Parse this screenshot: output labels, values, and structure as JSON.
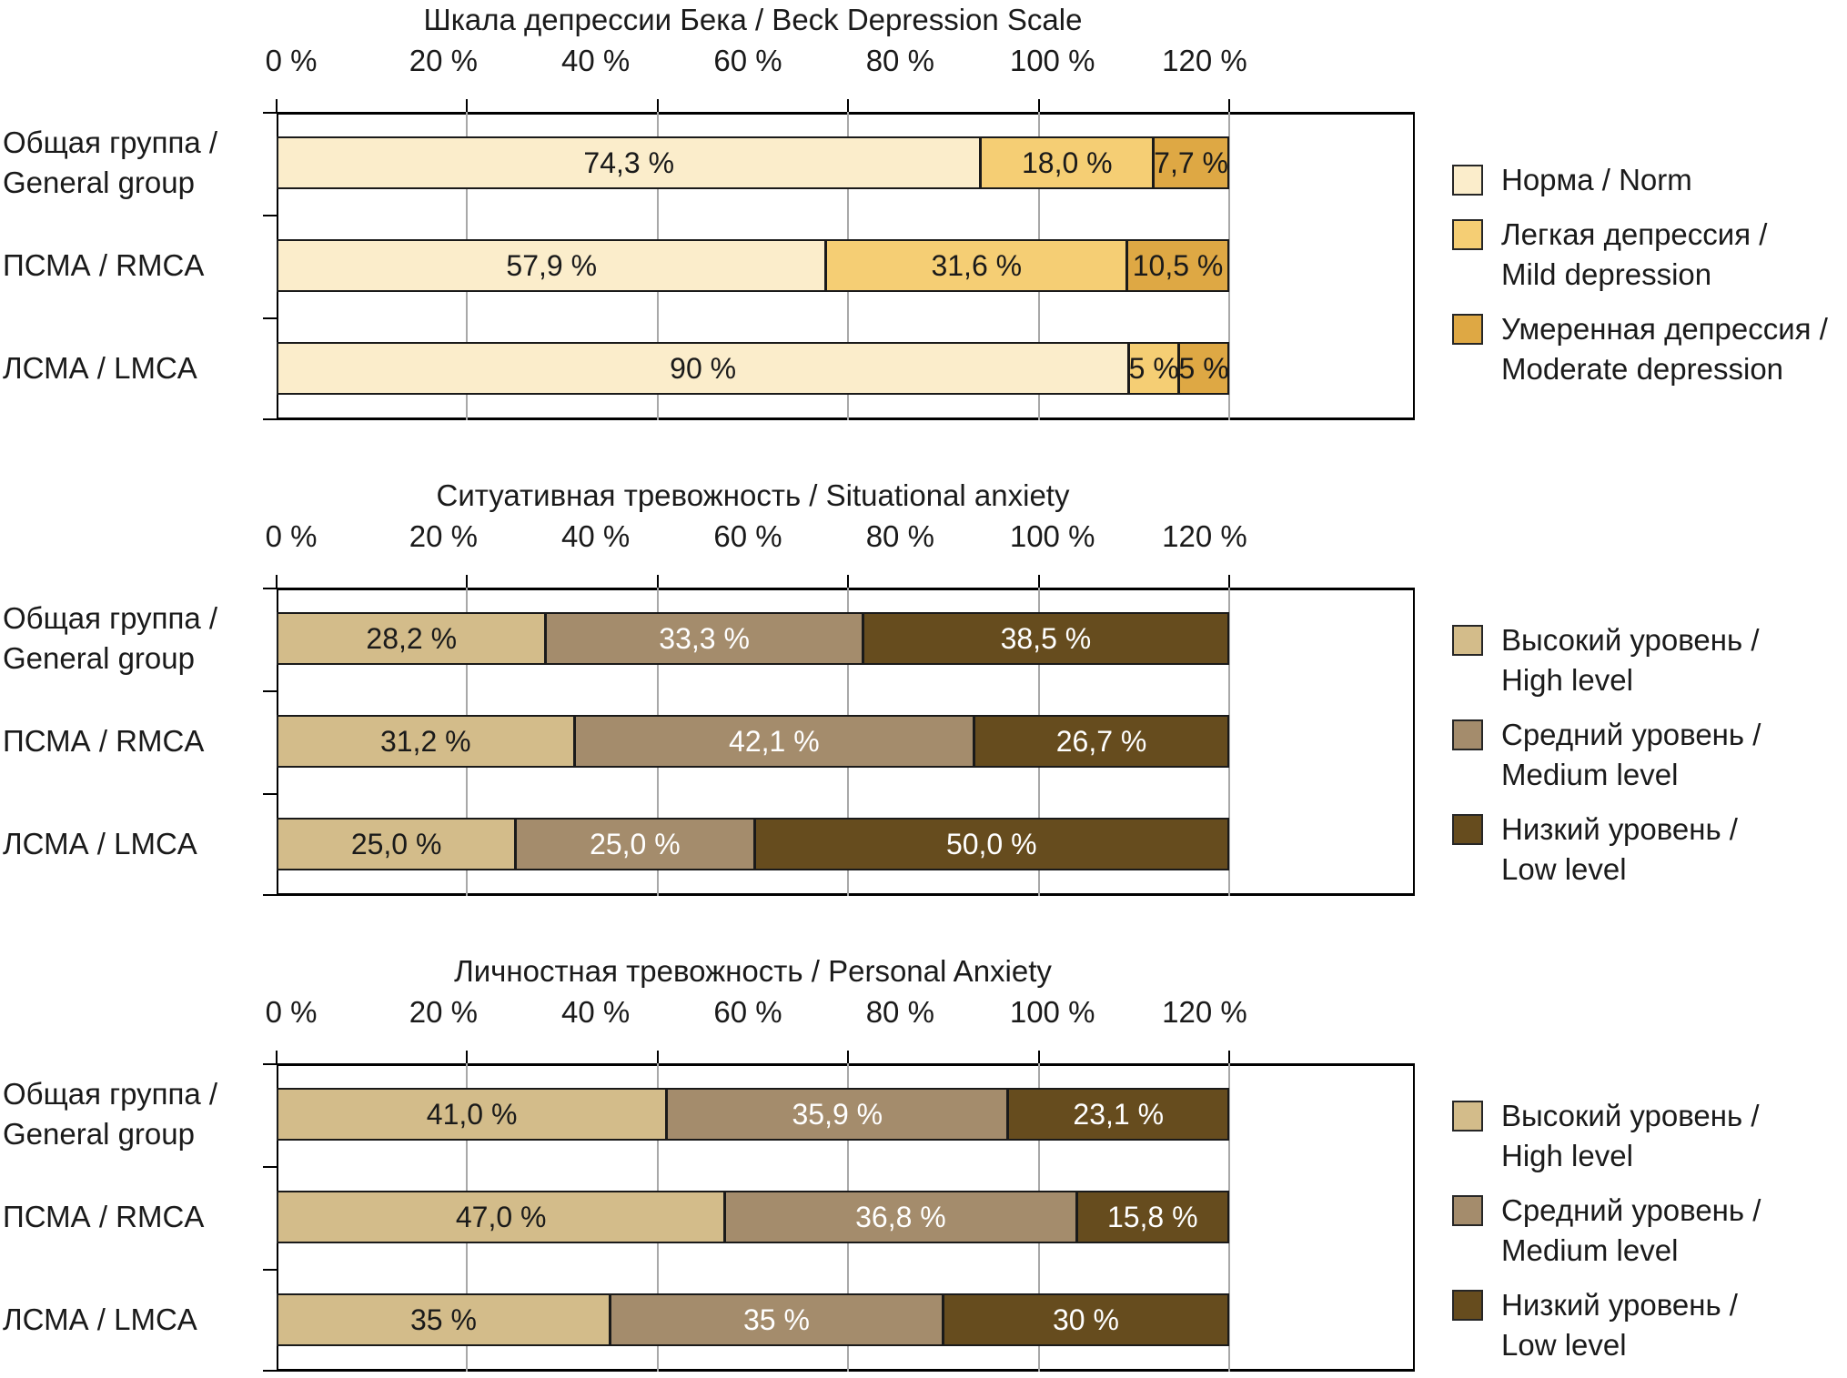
{
  "page": {
    "background": "#FFFFFF"
  },
  "axis": {
    "x_tick_labels": [
      "0 %",
      "20 %",
      "40 %",
      "60 %",
      "80 %",
      "100 %",
      "120 %"
    ]
  },
  "colors": {
    "frame": "#000000",
    "grid": "#A8A8A8",
    "bar_border": "#1A1A1A",
    "text": "#1A1A1A",
    "value_on_dark": "#FFFFFF",
    "depression_series": [
      "#FBEDCB",
      "#F5CE74",
      "#DEA844"
    ],
    "anxiety_series": [
      "#D3BC8A",
      "#A48C6C",
      "#664C1E"
    ]
  },
  "chart_data": [
    {
      "type": "bar",
      "orientation": "horizontal",
      "stacked": true,
      "title": "Шкала депрессии Бека / Beck Depression Scale",
      "x_axis_labels": [
        "0 %",
        "20 %",
        "40 %",
        "60 %",
        "80 %",
        "100 %",
        "120 %"
      ],
      "xlim": [
        0,
        120
      ],
      "grid": true,
      "legend_position": "right",
      "categories": [
        "Общая группа / General group",
        "ПСМА / RMCA",
        "ЛСМА / LMCA"
      ],
      "category_label_lines": [
        [
          "Общая группа /",
          "General group"
        ],
        [
          "ПСМА / RMCA"
        ],
        [
          "ЛСМА / LMCA"
        ]
      ],
      "series": [
        {
          "name": "Норма / Norm",
          "values": [
            74.3,
            57.9,
            90
          ]
        },
        {
          "name": "Легкая депрессия / Mild depression",
          "values": [
            18.0,
            31.6,
            5
          ]
        },
        {
          "name": "Умеренная депрессия / Moderate depression",
          "values": [
            7.7,
            10.5,
            5
          ]
        }
      ],
      "value_labels": [
        [
          "74,3 %",
          "18,0 %",
          "7,7 %"
        ],
        [
          "57,9 %",
          "31,6 %",
          "10,5 %"
        ],
        [
          "90 %",
          "5 %",
          "5 %"
        ]
      ],
      "series_colors": [
        "#FBEDCB",
        "#F5CE74",
        "#DEA844"
      ],
      "value_text_colors": [
        "#1A1A1A",
        "#1A1A1A",
        "#1A1A1A"
      ],
      "legend": [
        {
          "lines": [
            "Норма / Norm"
          ]
        },
        {
          "lines": [
            "Легкая депрессия /",
            "Mild depression"
          ]
        },
        {
          "lines": [
            "Умеренная депрессия /",
            "Moderate depression"
          ]
        }
      ]
    },
    {
      "type": "bar",
      "orientation": "horizontal",
      "stacked": true,
      "title": "Ситуативная тревожность / Situational anxiety",
      "x_axis_labels": [
        "0 %",
        "20 %",
        "40 %",
        "60 %",
        "80 %",
        "100 %",
        "120 %"
      ],
      "xlim": [
        0,
        120
      ],
      "grid": true,
      "legend_position": "right",
      "categories": [
        "Общая группа / General group",
        "ПСМА / RMCA",
        "ЛСМА / LMCA"
      ],
      "category_label_lines": [
        [
          "Общая группа /",
          "General group"
        ],
        [
          "ПСМА / RMCA"
        ],
        [
          "ЛСМА / LMCA"
        ]
      ],
      "series": [
        {
          "name": "Высокий уровень / High level",
          "values": [
            28.2,
            31.2,
            25.0
          ]
        },
        {
          "name": "Средний уровень / Medium level",
          "values": [
            33.3,
            42.1,
            25.0
          ]
        },
        {
          "name": "Низкий уровень / Low level",
          "values": [
            38.5,
            26.7,
            50.0
          ]
        }
      ],
      "value_labels": [
        [
          "28,2 %",
          "33,3 %",
          "38,5 %"
        ],
        [
          "31,2 %",
          "42,1 %",
          "26,7 %"
        ],
        [
          "25,0 %",
          "25,0 %",
          "50,0 %"
        ]
      ],
      "series_colors": [
        "#D3BC8A",
        "#A48C6C",
        "#664C1E"
      ],
      "value_text_colors": [
        "#1A1A1A",
        "#FFFFFF",
        "#FFFFFF"
      ],
      "legend": [
        {
          "lines": [
            "Высокий уровень /",
            "High level"
          ]
        },
        {
          "lines": [
            "Средний уровень /",
            "Medium level"
          ]
        },
        {
          "lines": [
            "Низкий уровень /",
            "Low level"
          ]
        }
      ]
    },
    {
      "type": "bar",
      "orientation": "horizontal",
      "stacked": true,
      "title": "Личностная тревожность / Personal Anxiety",
      "x_axis_labels": [
        "0 %",
        "20 %",
        "40 %",
        "60 %",
        "80 %",
        "100 %",
        "120 %"
      ],
      "xlim": [
        0,
        120
      ],
      "grid": true,
      "legend_position": "right",
      "categories": [
        "Общая группа / General group",
        "ПСМА / RMCA",
        "ЛСМА / LMCA"
      ],
      "category_label_lines": [
        [
          "Общая группа /",
          "General group"
        ],
        [
          "ПСМА / RMCA"
        ],
        [
          "ЛСМА / LMCA"
        ]
      ],
      "series": [
        {
          "name": "Высокий уровень / High level",
          "values": [
            41.0,
            47.0,
            35
          ]
        },
        {
          "name": "Средний уровень / Medium level",
          "values": [
            35.9,
            36.8,
            35
          ]
        },
        {
          "name": "Низкий уровень / Low level",
          "values": [
            23.1,
            15.8,
            30
          ]
        }
      ],
      "value_labels": [
        [
          "41,0 %",
          "35,9 %",
          "23,1 %"
        ],
        [
          "47,0 %",
          "36,8 %",
          "15,8 %"
        ],
        [
          "35 %",
          "35 %",
          "30 %"
        ]
      ],
      "series_colors": [
        "#D3BC8A",
        "#A48C6C",
        "#664C1E"
      ],
      "value_text_colors": [
        "#1A1A1A",
        "#FFFFFF",
        "#FFFFFF"
      ],
      "legend": [
        {
          "lines": [
            "Высокий уровень /",
            "High level"
          ]
        },
        {
          "lines": [
            "Средний уровень /",
            "Medium level"
          ]
        },
        {
          "lines": [
            "Низкий уровень /",
            "Low level"
          ]
        }
      ]
    }
  ]
}
